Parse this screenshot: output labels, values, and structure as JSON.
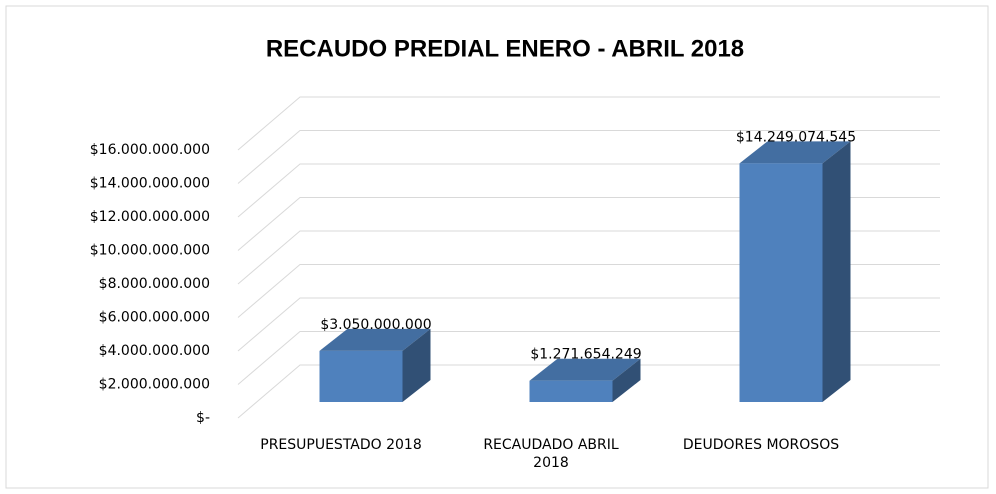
{
  "chart_data": {
    "type": "bar3d",
    "title": "RECAUDO PREDIAL ENERO - ABRIL 2018",
    "categories": [
      "PRESUPUESTADO 2018",
      "RECAUDADO ABRIL 2018",
      "DEUDORES MOROSOS"
    ],
    "values": [
      3050000000,
      1271654249,
      14249074545
    ],
    "value_labels": [
      "$3.050.000.000",
      "$1.271.654.249",
      "$14.249.074.545"
    ],
    "color": "#4f81bd",
    "ylim": [
      0,
      16000000000
    ],
    "yticks": [
      {
        "value": 0,
        "label": "$-"
      },
      {
        "value": 2000000000,
        "label": "$2.000.000.000"
      },
      {
        "value": 4000000000,
        "label": "$4.000.000.000"
      },
      {
        "value": 6000000000,
        "label": "$6.000.000.000"
      },
      {
        "value": 8000000000,
        "label": "$8.000.000.000"
      },
      {
        "value": 10000000000,
        "label": "$10.000.000.000"
      },
      {
        "value": 12000000000,
        "label": "$12.000.000.000"
      },
      {
        "value": 14000000000,
        "label": "$14.000.000.000"
      },
      {
        "value": 16000000000,
        "label": "$16.000.000.000"
      }
    ],
    "grid": true
  }
}
